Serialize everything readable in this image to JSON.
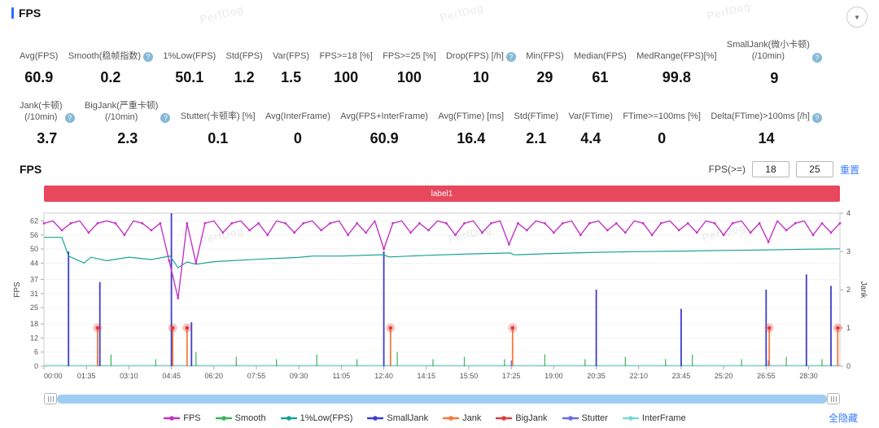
{
  "header": {
    "title": "FPS",
    "watermark": "PerfDog"
  },
  "icons": {
    "help": "?",
    "collapse": "▼"
  },
  "stats": {
    "row1": [
      {
        "label": "Avg(FPS)",
        "value": "60.9"
      },
      {
        "label": "Smooth(稳帧指数)",
        "value": "0.2",
        "help": true
      },
      {
        "label": "1%Low(FPS)",
        "value": "50.1"
      },
      {
        "label": "Std(FPS)",
        "value": "1.2"
      },
      {
        "label": "Var(FPS)",
        "value": "1.5"
      },
      {
        "label": "FPS>=18 [%]",
        "value": "100"
      },
      {
        "label": "FPS>=25 [%]",
        "value": "100"
      },
      {
        "label": "Drop(FPS) [/h]",
        "value": "10",
        "help": true
      },
      {
        "label": "Min(FPS)",
        "value": "29"
      },
      {
        "label": "Median(FPS)",
        "value": "61"
      },
      {
        "label": "MedRange(FPS)[%]",
        "value": "99.8"
      },
      {
        "label": "SmallJank(微小卡顿)\n(/10min)",
        "value": "9",
        "help": true
      }
    ],
    "row2": [
      {
        "label": "Jank(卡顿)\n(/10min)",
        "value": "3.7",
        "help": true
      },
      {
        "label": "BigJank(严重卡顿)\n(/10min)",
        "value": "2.3",
        "help": true
      },
      {
        "label": "Stutter(卡顿率) [%]",
        "value": "0.1"
      },
      {
        "label": "Avg(InterFrame)",
        "value": "0"
      },
      {
        "label": "Avg(FPS+InterFrame)",
        "value": "60.9"
      },
      {
        "label": "Avg(FTime) [ms]",
        "value": "16.4"
      },
      {
        "label": "Std(FTime)",
        "value": "2.1"
      },
      {
        "label": "Var(FTime)",
        "value": "4.4"
      },
      {
        "label": "FTime>=100ms [%]",
        "value": "0"
      },
      {
        "label": "Delta(FTime)>100ms [/h]",
        "value": "14",
        "help": true
      }
    ]
  },
  "chart_section": {
    "title": "FPS",
    "threshold_label": "FPS(>=)",
    "threshold1": "18",
    "threshold2": "25",
    "reset_label": "重置",
    "banner_label": "label1"
  },
  "legend": {
    "hide_all_label": "全隐藏",
    "items": [
      {
        "label": "FPS",
        "color": "#c434c4"
      },
      {
        "label": "Smooth",
        "color": "#3db35a"
      },
      {
        "label": "1%Low(FPS)",
        "color": "#18a393"
      },
      {
        "label": "SmallJank",
        "color": "#3d3dcf"
      },
      {
        "label": "Jank",
        "color": "#f5793b"
      },
      {
        "label": "BigJank",
        "color": "#e23b3b"
      },
      {
        "label": "Stutter",
        "color": "#6a6ae8"
      },
      {
        "label": "InterFrame",
        "color": "#7fd6d6"
      }
    ]
  },
  "chart_data": {
    "type": "line",
    "title": "FPS",
    "x_max": 1780,
    "x_ticks": {
      "times": [
        0,
        95,
        190,
        285,
        380,
        475,
        570,
        665,
        760,
        855,
        950,
        1045,
        1140,
        1235,
        1330,
        1425,
        1520,
        1615,
        1710
      ],
      "labels": [
        "00:00",
        "01:35",
        "03:10",
        "04:45",
        "06:20",
        "07:55",
        "09:30",
        "11:05",
        "12:40",
        "14:15",
        "15:50",
        "17:25",
        "19:00",
        "20:35",
        "22:10",
        "23:45",
        "25:20",
        "26:55",
        "28:30"
      ]
    },
    "left_axis": {
      "label": "FPS",
      "ticks": [
        0,
        6,
        12,
        18,
        25,
        31,
        37,
        44,
        50,
        56,
        62
      ],
      "max_display": 65.3
    },
    "right_axis": {
      "label": "Jank",
      "ticks": [
        0,
        1,
        2,
        3,
        4
      ],
      "max": 4
    },
    "series": [
      {
        "name": "InterFrame",
        "color": "#7fd6d6",
        "axis": "fps",
        "render": "line",
        "width": 1.2,
        "points": [
          [
            0,
            0.3
          ],
          [
            1780,
            0.3
          ]
        ]
      },
      {
        "name": "Stutter",
        "color": "#6a6ae8",
        "axis": "jank",
        "render": "spikes",
        "width": 1.4,
        "points": [
          [
            120,
            0.15
          ],
          [
            285,
            0.2
          ],
          [
            775,
            0.15
          ],
          [
            1045,
            0.15
          ],
          [
            1620,
            0.15
          ]
        ]
      },
      {
        "name": "Smooth",
        "color": "#3db35a",
        "axis": "fps",
        "render": "spikes",
        "width": 1.2,
        "points": [
          [
            150,
            5
          ],
          [
            250,
            3
          ],
          [
            340,
            6
          ],
          [
            430,
            4
          ],
          [
            520,
            3
          ],
          [
            610,
            5
          ],
          [
            700,
            3
          ],
          [
            790,
            6
          ],
          [
            870,
            3
          ],
          [
            940,
            4
          ],
          [
            1030,
            3
          ],
          [
            1120,
            5
          ],
          [
            1210,
            3
          ],
          [
            1300,
            4
          ],
          [
            1390,
            3
          ],
          [
            1450,
            5
          ],
          [
            1560,
            3
          ],
          [
            1660,
            4
          ],
          [
            1740,
            3
          ]
        ]
      },
      {
        "name": "SmallJank",
        "color": "#3d3dcf",
        "axis": "jank",
        "render": "spikes",
        "width": 1.8,
        "points": [
          [
            55,
            3
          ],
          [
            125,
            2.2
          ],
          [
            285,
            4
          ],
          [
            330,
            1.15
          ],
          [
            760,
            3
          ],
          [
            1235,
            2
          ],
          [
            1425,
            1.5
          ],
          [
            1615,
            2
          ],
          [
            1705,
            2.4
          ],
          [
            1760,
            2.1
          ]
        ]
      },
      {
        "name": "Jank",
        "color": "#f5793b",
        "axis": "jank",
        "render": "spikes",
        "width": 1.8,
        "points": [
          [
            120,
            1
          ],
          [
            288,
            1
          ],
          [
            320,
            1
          ],
          [
            775,
            1
          ],
          [
            1048,
            1
          ],
          [
            1622,
            1
          ],
          [
            1775,
            1
          ]
        ]
      },
      {
        "name": "1%Low(FPS)",
        "color": "#18a393",
        "axis": "fps",
        "render": "line",
        "width": 1.2,
        "points": [
          [
            0,
            55
          ],
          [
            40,
            55
          ],
          [
            55,
            47
          ],
          [
            90,
            44
          ],
          [
            105,
            46.5
          ],
          [
            140,
            45
          ],
          [
            190,
            46.5
          ],
          [
            240,
            45.5
          ],
          [
            282,
            47
          ],
          [
            300,
            42
          ],
          [
            320,
            44.5
          ],
          [
            340,
            43.5
          ],
          [
            380,
            44.6
          ],
          [
            475,
            45.6
          ],
          [
            568,
            46.4
          ],
          [
            600,
            47
          ],
          [
            665,
            47
          ],
          [
            758,
            47.6
          ],
          [
            772,
            46.6
          ],
          [
            855,
            47.3
          ],
          [
            950,
            47.9
          ],
          [
            1042,
            48.3
          ],
          [
            1052,
            47.5
          ],
          [
            1140,
            48.1
          ],
          [
            1235,
            48.6
          ],
          [
            1330,
            48.9
          ],
          [
            1425,
            49.1
          ],
          [
            1520,
            49.4
          ],
          [
            1615,
            49.6
          ],
          [
            1700,
            49.9
          ],
          [
            1780,
            50.1
          ]
        ]
      },
      {
        "name": "BigJank",
        "color": "#e23b3b",
        "axis": "jank",
        "render": "markers",
        "points": [
          [
            120,
            1
          ],
          [
            288,
            1
          ],
          [
            320,
            1
          ],
          [
            775,
            1
          ],
          [
            1048,
            1
          ],
          [
            1622,
            1
          ],
          [
            1775,
            1
          ]
        ]
      },
      {
        "name": "FPS",
        "color": "#c434c4",
        "axis": "fps",
        "render": "line",
        "width": 1.4,
        "markers": true,
        "x_start": 0,
        "x_step": 20,
        "values": [
          61,
          62,
          58,
          61,
          62,
          57,
          61,
          62,
          61,
          56,
          62,
          61,
          58,
          61,
          45,
          29,
          61,
          44,
          61,
          62,
          57,
          61,
          62,
          58,
          61,
          56,
          62,
          61,
          57,
          61,
          62,
          58,
          61,
          62,
          56,
          61,
          57,
          62,
          50,
          61,
          62,
          57,
          61,
          58,
          62,
          61,
          56,
          61,
          62,
          57,
          61,
          62,
          52,
          61,
          58,
          62,
          61,
          57,
          61,
          62,
          56,
          61,
          62,
          58,
          61,
          57,
          62,
          61,
          56,
          61,
          62,
          58,
          61,
          57,
          62,
          61,
          56,
          61,
          62,
          57,
          61,
          53,
          62,
          58,
          61,
          62,
          56,
          61,
          57,
          61
        ]
      }
    ]
  }
}
